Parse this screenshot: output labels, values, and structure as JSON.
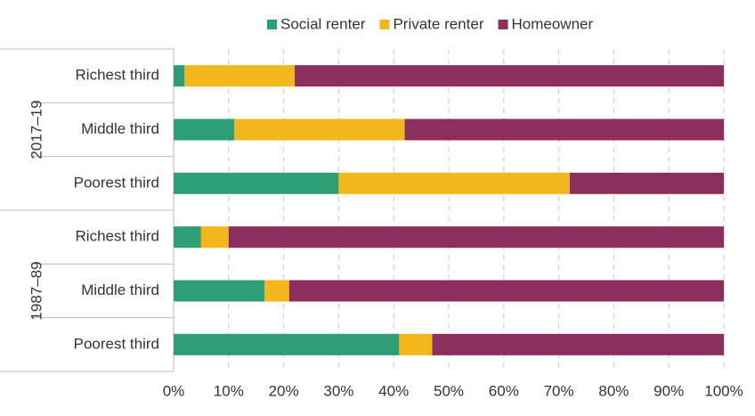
{
  "chart_data": {
    "type": "stacked-bar-horizontal",
    "groups": [
      {
        "name": "2017–19",
        "categories": [
          "Richest third",
          "Middle third",
          "Poorest third"
        ]
      },
      {
        "name": "1987–89",
        "categories": [
          "Richest third",
          "Middle third",
          "Poorest third"
        ]
      }
    ],
    "series": [
      {
        "name": "Social renter",
        "color": "#2e9e74",
        "values": [
          2,
          11,
          30,
          5,
          16.5,
          41
        ]
      },
      {
        "name": "Private renter",
        "color": "#f1b71c",
        "values": [
          20,
          31,
          42,
          5,
          4.5,
          6
        ]
      },
      {
        "name": "Homeowner",
        "color": "#8c2f5e",
        "values": [
          78,
          58,
          28,
          90,
          79,
          53
        ]
      }
    ],
    "xlim": [
      0,
      100
    ],
    "xticks": [
      {
        "value": 0,
        "label": "0%"
      },
      {
        "value": 10,
        "label": "10%"
      },
      {
        "value": 20,
        "label": "20%"
      },
      {
        "value": 30,
        "label": "30%"
      },
      {
        "value": 40,
        "label": "40%"
      },
      {
        "value": 50,
        "label": "50%"
      },
      {
        "value": 60,
        "label": "60%"
      },
      {
        "value": 70,
        "label": "70%"
      },
      {
        "value": 80,
        "label": "80%"
      },
      {
        "value": 90,
        "label": "90%"
      },
      {
        "value": 100,
        "label": "100%"
      }
    ],
    "grid": true
  }
}
